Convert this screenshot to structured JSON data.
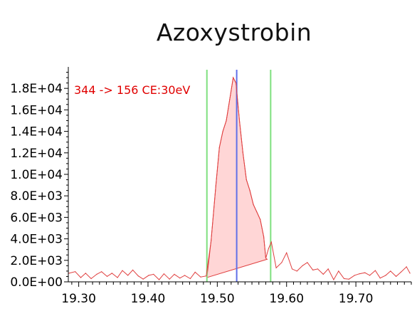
{
  "chart_data": {
    "type": "line",
    "title": "Azoxystrobin",
    "annotation": "344 -> 156 CE:30eV",
    "xlabel": "",
    "ylabel": "",
    "xlim": [
      19.285,
      19.78
    ],
    "ylim": [
      0,
      19600
    ],
    "x_ticks": [
      19.3,
      19.4,
      19.5,
      19.6,
      19.7
    ],
    "x_tick_labels": [
      "19.30",
      "19.40",
      "19.50",
      "19.60",
      "19.70"
    ],
    "y_ticks": [
      0,
      2000,
      4000,
      6000,
      8000,
      10000,
      12000,
      14000,
      16000,
      18000
    ],
    "y_tick_labels": [
      "0.0E+00",
      "2.0E+03",
      "4.0E+03",
      "6.0E+03",
      "8.0E+03",
      "1.0E+04",
      "1.2E+04",
      "1.4E+04",
      "1.6E+04",
      "1.8E+04"
    ],
    "series": [
      {
        "color": "#e04040",
        "x": [
          19.286,
          19.295,
          19.303,
          19.31,
          19.318,
          19.326,
          19.333,
          19.341,
          19.348,
          19.356,
          19.363,
          19.371,
          19.378,
          19.386,
          19.393,
          19.401,
          19.408,
          19.416,
          19.423,
          19.431,
          19.438,
          19.446,
          19.453,
          19.461,
          19.468,
          19.476,
          19.484,
          19.491,
          19.498,
          19.503,
          19.508,
          19.513,
          19.518,
          19.523,
          19.527,
          19.532,
          19.537,
          19.542,
          19.547,
          19.552,
          19.557,
          19.562,
          19.567,
          19.57,
          19.574,
          19.578,
          19.585,
          19.593,
          19.6,
          19.608,
          19.615,
          19.623,
          19.63,
          19.638,
          19.645,
          19.653,
          19.66,
          19.668,
          19.675,
          19.683,
          19.69,
          19.698,
          19.705,
          19.713,
          19.72,
          19.728,
          19.735,
          19.743,
          19.75,
          19.758,
          19.765,
          19.773,
          19.778
        ],
        "y": [
          800,
          950,
          400,
          800,
          300,
          700,
          950,
          500,
          800,
          400,
          1050,
          600,
          1100,
          550,
          250,
          600,
          700,
          200,
          750,
          250,
          700,
          350,
          600,
          300,
          900,
          450,
          550,
          3800,
          9000,
          12500,
          14000,
          15000,
          17000,
          19000,
          18500,
          15000,
          12000,
          9500,
          8500,
          7200,
          6500,
          5800,
          4200,
          2200,
          3100,
          3700,
          1300,
          1800,
          2700,
          1200,
          1000,
          1500,
          1800,
          1100,
          1200,
          700,
          1200,
          200,
          1000,
          300,
          250,
          600,
          750,
          850,
          600,
          1050,
          350,
          600,
          1000,
          500,
          900,
          1400,
          800
        ]
      }
    ],
    "markers": [
      {
        "name": "integration-start",
        "x": 19.485,
        "color": "#7fe07f"
      },
      {
        "name": "integration-end",
        "x": 19.577,
        "color": "#7fe07f"
      },
      {
        "name": "peak-apex",
        "x": 19.528,
        "color": "#6070e8"
      }
    ],
    "shaded_peak": {
      "color": "#ffd6d6",
      "baseline_start": [
        19.485,
        400
      ],
      "baseline_end": [
        19.572,
        2100
      ]
    },
    "grid": false,
    "legend": "none"
  }
}
